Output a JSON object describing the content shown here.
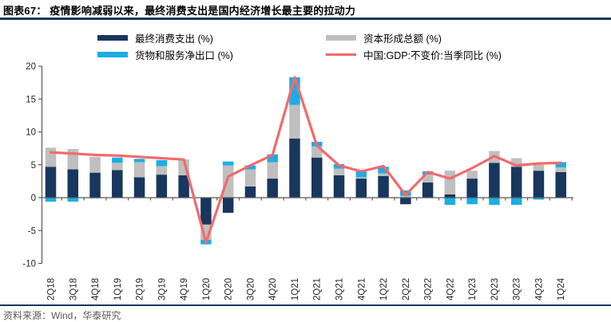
{
  "header": {
    "title": "图表67：  疫情影响减弱以来，最终消费支出是国内经济增长最主要的拉动力"
  },
  "legend": {
    "items": [
      {
        "label": "最终消费支出 (%)",
        "color": "#17375e",
        "type": "bar"
      },
      {
        "label": "资本形成总额 (%)",
        "color": "#bfbfbf",
        "type": "bar"
      },
      {
        "label": "货物和服务净出口 (%)",
        "color": "#1aaee5",
        "type": "bar"
      },
      {
        "label": "中国:GDP:不变价:当季同比 (%)",
        "color": "#f4696b",
        "type": "line"
      }
    ]
  },
  "footer": {
    "source": "资料来源：Wind，华泰研究"
  },
  "chart_data": {
    "type": "bar",
    "subtype": "stacked-bars-with-line",
    "title": "",
    "xlabel": "",
    "ylabel": "",
    "ylim": [
      -10,
      20
    ],
    "yticks": [
      20,
      15,
      10,
      5,
      0,
      -5,
      -10
    ],
    "grid": false,
    "legend_position": "top",
    "categories": [
      "2Q18",
      "3Q18",
      "4Q18",
      "1Q19",
      "2Q19",
      "3Q19",
      "4Q19",
      "1Q20",
      "2Q20",
      "3Q20",
      "4Q20",
      "1Q21",
      "2Q21",
      "3Q21",
      "4Q21",
      "1Q22",
      "2Q22",
      "3Q22",
      "4Q22",
      "1Q23",
      "2Q23",
      "3Q23",
      "4Q23",
      "1Q24"
    ],
    "series": [
      {
        "name": "最终消费支出 (%)",
        "type": "bar",
        "color": "#17375e",
        "values": [
          4.7,
          4.3,
          3.8,
          4.2,
          3.1,
          3.5,
          3.4,
          -4.1,
          -2.3,
          1.7,
          2.9,
          9.0,
          6.1,
          3.4,
          2.9,
          3.3,
          -1.0,
          2.3,
          0.5,
          2.9,
          5.3,
          4.7,
          4.1,
          3.9
        ]
      },
      {
        "name": "资本形成总额 (%)",
        "type": "bar",
        "color": "#bfbfbf",
        "values": [
          2.9,
          3.1,
          2.4,
          1.1,
          2.3,
          1.3,
          2.4,
          -2.3,
          4.9,
          2.6,
          2.5,
          5.1,
          1.7,
          1.0,
          0.2,
          0.4,
          0.3,
          1.2,
          3.6,
          1.2,
          1.8,
          1.3,
          0.9,
          0.7
        ]
      },
      {
        "name": "货物和服务净出口 (%)",
        "type": "bar",
        "color": "#1aaee5",
        "values": [
          -0.6,
          -0.6,
          -0.1,
          0.8,
          0.5,
          0.9,
          0.0,
          -0.7,
          0.6,
          0.6,
          1.2,
          4.2,
          0.7,
          0.7,
          1.1,
          1.0,
          0.8,
          0.5,
          -1.1,
          -1.0,
          -1.1,
          -1.1,
          -0.3,
          0.8
        ]
      },
      {
        "name": "中国:GDP:不变价:当季同比 (%)",
        "type": "line",
        "color": "#f4696b",
        "values": [
          6.9,
          6.7,
          6.5,
          6.4,
          6.2,
          6.0,
          5.8,
          -6.8,
          3.2,
          4.9,
          6.5,
          18.3,
          7.9,
          4.9,
          4.0,
          4.8,
          0.4,
          3.9,
          2.9,
          4.5,
          6.3,
          4.9,
          5.2,
          5.3
        ]
      }
    ]
  }
}
